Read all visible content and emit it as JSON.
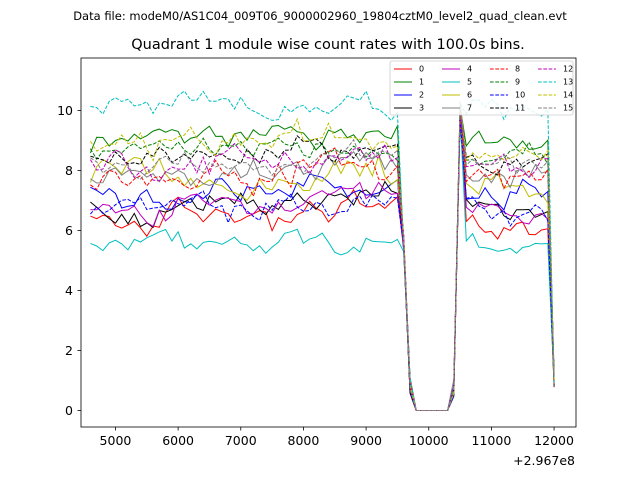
{
  "figure": {
    "header": "Data file: modeM0/AS1C04_009T06_9000002960_19804cztM0_level2_quad_clean.evt"
  },
  "chart_data": {
    "type": "line",
    "title": "Quadrant 1 module wise count rates with 100.0s bins.",
    "xlabel": "",
    "ylabel": "",
    "x_offset_label": "+2.967e8",
    "x_offset": 296700000,
    "xlim": [
      4450,
      12350
    ],
    "ylim": [
      -0.55,
      11.75
    ],
    "xticks": [
      5000,
      6000,
      7000,
      8000,
      9000,
      10000,
      11000,
      12000
    ],
    "xtick_labels": [
      "5000",
      "6000",
      "7000",
      "8000",
      "9000",
      "10000",
      "11000",
      "12000"
    ],
    "yticks": [
      0,
      2,
      4,
      6,
      8,
      10
    ],
    "ytick_labels": [
      "0",
      "2",
      "4",
      "6",
      "8",
      "10"
    ],
    "grid": false,
    "legend_position": "top-right",
    "legend_columns": 4,
    "segments": [
      {
        "start": 4600,
        "end": 9500,
        "step": 100
      },
      {
        "start": 9600,
        "end": 9700,
        "step": 100,
        "values": [
          5.6,
          0.8
        ]
      },
      {
        "start": 9800,
        "end": 10300,
        "step": 100,
        "values": [
          0.0,
          0.0,
          0.0,
          0.0,
          0.0,
          0.0
        ]
      },
      {
        "start": 10400,
        "end": 10500,
        "step": 100,
        "values": [
          0.8,
          10.0
        ]
      },
      {
        "start": 10600,
        "end": 11900,
        "step": 100
      },
      {
        "start": 12000,
        "end": 12000,
        "step": 100,
        "values": [
          1.0
        ]
      }
    ],
    "series": [
      {
        "name": "0",
        "color": "#ff0000",
        "dash": "solid",
        "mean": 6.6,
        "active_level": 6.2,
        "post_level": 6.0,
        "spread": 0.45
      },
      {
        "name": "1",
        "color": "#008000",
        "dash": "solid",
        "mean": 9.2,
        "active_level": 8.8,
        "post_level": 9.0,
        "spread": 0.4
      },
      {
        "name": "2",
        "color": "#0000ff",
        "dash": "solid",
        "mean": 7.4,
        "active_level": 7.2,
        "post_level": 7.2,
        "spread": 0.45
      },
      {
        "name": "3",
        "color": "#000000",
        "dash": "solid",
        "mean": 7.0,
        "active_level": 6.8,
        "post_level": 6.6,
        "spread": 0.4
      },
      {
        "name": "4",
        "color": "#bf00bf",
        "dash": "solid",
        "mean": 6.8,
        "active_level": 6.6,
        "post_level": 6.4,
        "spread": 0.4
      },
      {
        "name": "5",
        "color": "#00bfbf",
        "dash": "solid",
        "mean": 5.6,
        "active_level": 5.5,
        "post_level": 5.6,
        "spread": 0.35
      },
      {
        "name": "6",
        "color": "#bfbf00",
        "dash": "solid",
        "mean": 7.8,
        "active_level": 7.6,
        "post_level": 7.5,
        "spread": 0.45
      },
      {
        "name": "7",
        "color": "#808080",
        "dash": "solid",
        "mean": 8.0,
        "active_level": 7.8,
        "post_level": 7.8,
        "spread": 0.4
      },
      {
        "name": "8",
        "color": "#ff0000",
        "dash": "dashed",
        "mean": 8.0,
        "active_level": 7.8,
        "post_level": 7.8,
        "spread": 0.45
      },
      {
        "name": "9",
        "color": "#008000",
        "dash": "dashed",
        "mean": 8.7,
        "active_level": 8.6,
        "post_level": 8.6,
        "spread": 0.35
      },
      {
        "name": "10",
        "color": "#0000ff",
        "dash": "dashed",
        "mean": 6.8,
        "active_level": 6.6,
        "post_level": 6.6,
        "spread": 0.4
      },
      {
        "name": "11",
        "color": "#000000",
        "dash": "dashed",
        "mean": 8.6,
        "active_level": 8.4,
        "post_level": 8.4,
        "spread": 0.35
      },
      {
        "name": "12",
        "color": "#bf00bf",
        "dash": "dashed",
        "mean": 8.4,
        "active_level": 8.2,
        "post_level": 8.2,
        "spread": 0.45
      },
      {
        "name": "13",
        "color": "#00bfbf",
        "dash": "dashed",
        "mean": 10.2,
        "active_level": 10.0,
        "post_level": 10.0,
        "spread": 0.4
      },
      {
        "name": "14",
        "color": "#bfbf00",
        "dash": "dashed",
        "mean": 9.0,
        "active_level": 8.8,
        "post_level": 8.8,
        "spread": 0.45
      },
      {
        "name": "15",
        "color": "#808080",
        "dash": "dashed",
        "mean": 8.3,
        "active_level": 8.2,
        "post_level": 8.2,
        "spread": 0.4
      }
    ]
  }
}
